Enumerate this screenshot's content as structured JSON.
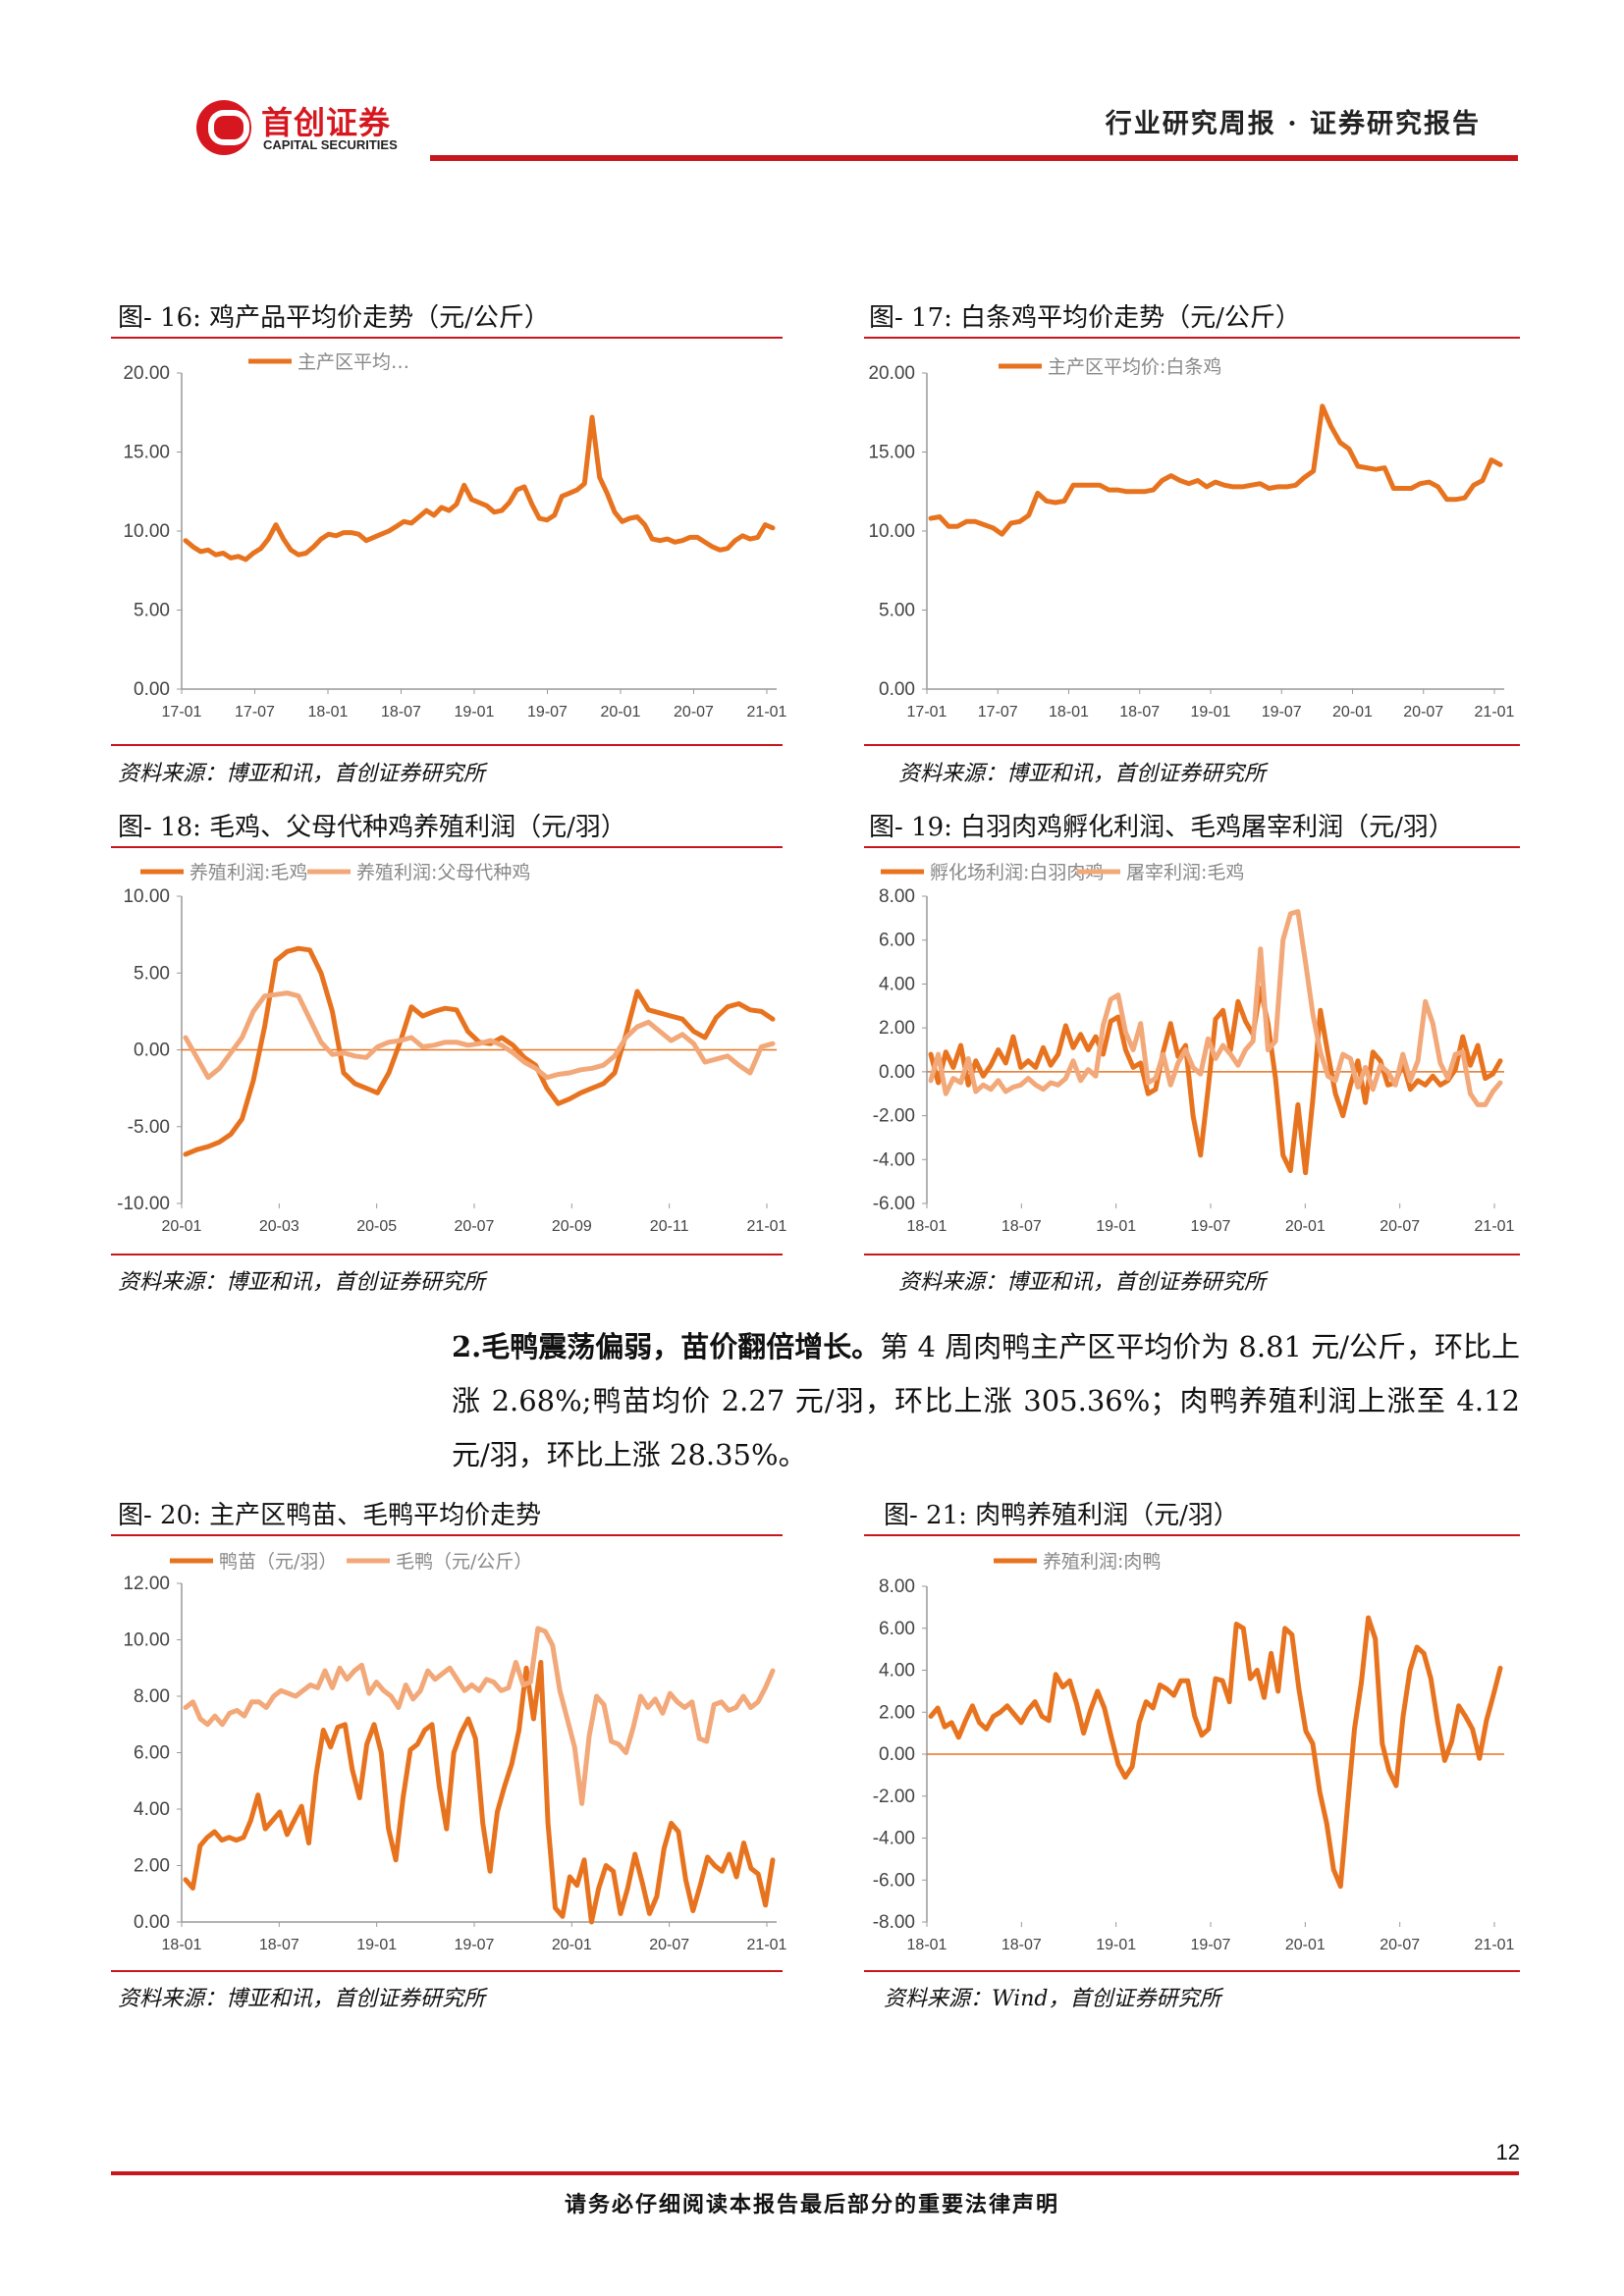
{
  "header": {
    "logo_cn": "首创证券",
    "logo_en": "CAPITAL SECURITIES",
    "report_type": "行业研究周报 · 证券研究报告"
  },
  "figures": [
    {
      "caption": "图- 16:  鸡产品平均价走势（元/公斤）",
      "source": "资料来源：博亚和讯，首创证券研究所"
    },
    {
      "caption": "图- 17:  白条鸡平均价走势（元/公斤）",
      "source": "资料来源：博亚和讯，首创证券研究所"
    },
    {
      "caption": "图- 18:  毛鸡、父母代种鸡养殖利润（元/羽）",
      "source": "资料来源：博亚和讯，首创证券研究所"
    },
    {
      "caption": "图- 19:  白羽肉鸡孵化利润、毛鸡屠宰利润（元/羽）",
      "source": "资料来源：博亚和讯，首创证券研究所"
    },
    {
      "caption": "图- 20:  主产区鸭苗、毛鸭平均价走势",
      "source": "资料来源：博亚和讯，首创证券研究所"
    },
    {
      "caption": "图- 21:  肉鸭养殖利润（元/羽）",
      "source": "资料来源：Wind，首创证券研究所"
    }
  ],
  "paragraph": {
    "bold": "2.毛鸭震荡偏弱，苗价翻倍增长。",
    "text": "第 4 周肉鸭主产区平均价为 8.81 元/公斤，环比上涨 2.68%;鸭苗均价 2.27 元/羽，环比上涨 305.36%；肉鸭养殖利润上涨至 4.12 元/羽，环比上涨 28.35%。"
  },
  "footer": {
    "page_number": "12",
    "disclaimer": "请务必仔细阅读本报告最后部分的重要法律声明"
  },
  "colors": {
    "accent": "#c8161d",
    "series_dark": "#e8731f",
    "series_light": "#f2a878"
  },
  "chart_data": [
    {
      "type": "line",
      "ylim": [
        0,
        20
      ],
      "yticks": [
        "20.00",
        "15.00",
        "10.00",
        "5.00",
        "0.00"
      ],
      "xticks": [
        "17-01",
        "17-07",
        "18-01",
        "18-07",
        "19-01",
        "19-07",
        "20-01",
        "20-07",
        "21-01"
      ],
      "series": [
        {
          "name": "主产区平均…",
          "values": [
            9.4,
            9.0,
            8.7,
            8.8,
            8.5,
            8.6,
            8.3,
            8.4,
            8.2,
            8.6,
            8.9,
            9.5,
            10.4,
            9.5,
            8.8,
            8.5,
            8.6,
            9.0,
            9.5,
            9.8,
            9.7,
            9.9,
            9.9,
            9.8,
            9.4,
            9.6,
            9.8,
            10.0,
            10.3,
            10.6,
            10.5,
            10.9,
            11.3,
            11.0,
            11.5,
            11.3,
            11.7,
            12.9,
            12.0,
            11.8,
            11.6,
            11.2,
            11.3,
            11.8,
            12.6,
            12.8,
            11.7,
            10.8,
            10.7,
            11.0,
            12.2,
            12.4,
            12.6,
            13.0,
            17.2,
            13.4,
            12.4,
            11.2,
            10.6,
            10.8,
            10.9,
            10.4,
            9.5,
            9.4,
            9.5,
            9.3,
            9.4,
            9.6,
            9.6,
            9.3,
            9.0,
            8.8,
            8.9,
            9.4,
            9.7,
            9.5,
            9.6,
            10.4,
            10.2
          ]
        }
      ]
    },
    {
      "type": "line",
      "ylim": [
        0,
        20
      ],
      "yticks": [
        "20.00",
        "15.00",
        "10.00",
        "5.00",
        "0.00"
      ],
      "xticks": [
        "17-01",
        "17-07",
        "18-01",
        "18-07",
        "19-01",
        "19-07",
        "20-01",
        "20-07",
        "21-01"
      ],
      "series": [
        {
          "name": "主产区平均价:白条鸡",
          "values": [
            10.8,
            10.9,
            10.3,
            10.3,
            10.6,
            10.6,
            10.4,
            10.2,
            9.8,
            10.5,
            10.6,
            11.0,
            12.4,
            11.9,
            11.8,
            11.9,
            12.9,
            12.9,
            12.9,
            12.9,
            12.6,
            12.6,
            12.5,
            12.5,
            12.5,
            12.6,
            13.2,
            13.5,
            13.2,
            13.0,
            13.2,
            12.8,
            13.1,
            12.9,
            12.8,
            12.8,
            12.9,
            13.0,
            12.7,
            12.8,
            12.8,
            12.9,
            13.4,
            13.8,
            17.9,
            16.6,
            15.6,
            15.2,
            14.1,
            14.0,
            13.9,
            14.0,
            12.7,
            12.7,
            12.7,
            13.0,
            13.1,
            12.8,
            12.0,
            12.0,
            12.1,
            12.9,
            13.2,
            14.5,
            14.2
          ]
        }
      ]
    },
    {
      "type": "line",
      "ylim": [
        -10,
        10
      ],
      "yticks": [
        "10.00",
        "5.00",
        "0.00",
        "-5.00",
        "-10.00"
      ],
      "xticks": [
        "20-01",
        "20-03",
        "20-05",
        "20-07",
        "20-09",
        "20-11",
        "21-01"
      ],
      "series": [
        {
          "name": "养殖利润:毛鸡",
          "values": [
            -6.8,
            -6.5,
            -6.3,
            -6.0,
            -5.5,
            -4.5,
            -2.0,
            1.5,
            5.8,
            6.4,
            6.6,
            6.5,
            5.0,
            2.5,
            -1.5,
            -2.2,
            -2.5,
            -2.8,
            -1.5,
            0.5,
            2.8,
            2.2,
            2.5,
            2.7,
            2.6,
            1.2,
            0.5,
            0.4,
            0.8,
            0.3,
            -0.5,
            -1.0,
            -2.5,
            -3.5,
            -3.2,
            -2.8,
            -2.5,
            -2.2,
            -1.5,
            1.0,
            3.8,
            2.6,
            2.4,
            2.2,
            2.0,
            1.2,
            0.8,
            2.1,
            2.8,
            3.0,
            2.6,
            2.5,
            2.0
          ],
          "color": "#e8731f"
        },
        {
          "name": "养殖利润:父母代种鸡",
          "values": [
            0.8,
            -0.5,
            -1.8,
            -1.2,
            -0.2,
            0.8,
            2.5,
            3.5,
            3.6,
            3.7,
            3.5,
            2.0,
            0.5,
            -0.3,
            -0.2,
            -0.4,
            -0.5,
            0.2,
            0.5,
            0.6,
            0.8,
            0.2,
            0.3,
            0.5,
            0.5,
            0.3,
            0.4,
            0.6,
            0.3,
            -0.2,
            -0.8,
            -1.2,
            -1.8,
            -1.6,
            -1.5,
            -1.3,
            -1.2,
            -1.0,
            -0.4,
            0.8,
            1.5,
            1.8,
            1.2,
            0.6,
            1.0,
            0.4,
            -0.8,
            -0.6,
            -0.4,
            -1.0,
            -1.5,
            0.2,
            0.4
          ],
          "color": "#f2a878"
        }
      ]
    },
    {
      "type": "line",
      "ylim": [
        -6,
        8
      ],
      "yticks": [
        "8.00",
        "6.00",
        "4.00",
        "2.00",
        "0.00",
        "-2.00",
        "-4.00",
        "-6.00"
      ],
      "xticks": [
        "18-01",
        "18-07",
        "19-01",
        "19-07",
        "20-01",
        "20-07",
        "21-01"
      ],
      "series": [
        {
          "name": "孵化场利润:白羽肉鸡",
          "values": [
            0.8,
            -0.5,
            0.9,
            0.2,
            1.2,
            -0.6,
            0.5,
            -0.2,
            0.3,
            1.0,
            0.4,
            1.6,
            0.2,
            0.5,
            0.2,
            1.1,
            0.3,
            0.8,
            2.1,
            1.1,
            1.7,
            1.0,
            1.6,
            0.8,
            2.3,
            2.5,
            1.0,
            0.2,
            0.4,
            -1.0,
            -0.8,
            0.9,
            2.2,
            0.7,
            1.2,
            -2.0,
            -3.8,
            -0.8,
            2.4,
            2.8,
            1.0,
            3.2,
            2.3,
            1.7,
            3.8,
            2.2,
            -0.3,
            -3.8,
            -4.5,
            -1.5,
            -4.6,
            -1.2,
            2.8,
            0.8,
            -1.0,
            -2.0,
            -0.6,
            0.5,
            -1.4,
            0.9,
            0.5,
            -0.6,
            -0.5,
            0.4,
            -0.8,
            -0.4,
            -0.6,
            -0.2,
            -0.6,
            -0.4,
            0.1,
            1.6,
            0.3,
            1.2,
            -0.3,
            -0.1,
            0.5
          ],
          "color": "#e8731f"
        },
        {
          "name": "屠宰利润:毛鸡",
          "values": [
            -0.4,
            0.8,
            -1.0,
            -0.3,
            -0.5,
            0.6,
            -0.9,
            -0.6,
            -0.8,
            -0.4,
            -0.9,
            -0.7,
            -0.6,
            -0.3,
            -0.6,
            -0.8,
            -0.5,
            -0.6,
            -0.3,
            0.5,
            -0.4,
            0.1,
            -0.2,
            2.1,
            3.3,
            3.5,
            1.8,
            1.0,
            2.2,
            -0.5,
            -0.3,
            0.8,
            -0.6,
            0.4,
            1.0,
            0.2,
            -0.1,
            1.5,
            0.6,
            1.2,
            0.8,
            0.3,
            1.0,
            1.4,
            5.6,
            1.0,
            1.4,
            6.0,
            7.2,
            7.3,
            5.0,
            2.6,
            0.9,
            -0.2,
            -0.4,
            0.8,
            0.6,
            -0.7,
            0.2,
            -0.8,
            0.3,
            0.0,
            -0.6,
            0.8,
            -0.4,
            0.5,
            3.2,
            2.2,
            0.4,
            -0.3,
            0.8,
            0.9,
            -1.0,
            -1.5,
            -1.5,
            -0.9,
            -0.5
          ],
          "color": "#f2a878"
        }
      ]
    },
    {
      "type": "line",
      "ylim": [
        0,
        12
      ],
      "yticks": [
        "12.00",
        "10.00",
        "8.00",
        "6.00",
        "4.00",
        "2.00",
        "0.00"
      ],
      "xticks": [
        "18-01",
        "18-07",
        "19-01",
        "19-07",
        "20-01",
        "20-07",
        "21-01"
      ],
      "series": [
        {
          "name": "鸭苗（元/羽）",
          "values": [
            1.5,
            1.2,
            2.7,
            3.0,
            3.2,
            2.9,
            3.0,
            2.9,
            3.0,
            3.6,
            4.5,
            3.3,
            3.6,
            3.9,
            3.1,
            3.6,
            4.1,
            2.8,
            5.2,
            6.8,
            6.2,
            6.9,
            7.0,
            5.4,
            4.4,
            6.3,
            7.0,
            6.0,
            3.3,
            2.2,
            4.4,
            6.1,
            6.3,
            6.8,
            7.0,
            4.8,
            3.3,
            6.0,
            6.7,
            7.2,
            6.5,
            3.5,
            1.8,
            3.9,
            4.8,
            5.6,
            6.8,
            9.0,
            7.2,
            9.2,
            3.5,
            0.5,
            0.2,
            1.6,
            1.3,
            2.2,
            0.0,
            1.2,
            2.0,
            1.8,
            0.3,
            1.2,
            2.4,
            1.4,
            0.3,
            0.9,
            2.6,
            3.5,
            3.2,
            1.5,
            0.4,
            1.3,
            2.3,
            2.0,
            1.8,
            2.4,
            1.6,
            2.8,
            1.9,
            1.7,
            0.6,
            2.2
          ]
        },
        {
          "name": "毛鸭（元/公斤）",
          "values": [
            7.6,
            7.8,
            7.2,
            7.0,
            7.3,
            7.0,
            7.4,
            7.5,
            7.3,
            7.8,
            7.8,
            7.6,
            8.0,
            8.2,
            8.1,
            8.0,
            8.2,
            8.4,
            8.3,
            8.9,
            8.3,
            9.0,
            8.6,
            8.9,
            9.1,
            8.1,
            8.5,
            8.2,
            8.0,
            7.6,
            8.4,
            7.9,
            8.2,
            8.9,
            8.6,
            8.8,
            9.0,
            8.6,
            8.2,
            8.4,
            8.2,
            8.6,
            8.5,
            8.2,
            8.3,
            9.2,
            8.4,
            8.5,
            10.4,
            10.3,
            9.8,
            8.2,
            7.2,
            6.2,
            4.2,
            6.6,
            8.0,
            7.7,
            6.4,
            6.3,
            6.0,
            6.9,
            8.0,
            7.6,
            7.9,
            7.4,
            8.1,
            7.8,
            7.6,
            7.8,
            6.5,
            6.4,
            7.7,
            7.8,
            7.5,
            7.6,
            8.0,
            7.6,
            7.8,
            8.3,
            8.9
          ]
        }
      ]
    },
    {
      "type": "line",
      "ylim": [
        -8,
        8
      ],
      "yticks": [
        "8.00",
        "6.00",
        "4.00",
        "2.00",
        "0.00",
        "-2.00",
        "-4.00",
        "-6.00",
        "-8.00"
      ],
      "xticks": [
        "18-01",
        "18-07",
        "19-01",
        "19-07",
        "20-01",
        "20-07",
        "21-01"
      ],
      "series": [
        {
          "name": "养殖利润:肉鸭",
          "values": [
            1.8,
            2.2,
            1.3,
            1.5,
            0.8,
            1.6,
            2.3,
            1.5,
            1.2,
            1.8,
            2.0,
            2.3,
            1.9,
            1.5,
            2.1,
            2.5,
            1.8,
            1.6,
            3.8,
            3.2,
            3.5,
            2.4,
            1.0,
            2.1,
            3.0,
            2.2,
            0.8,
            -0.5,
            -1.1,
            -0.6,
            1.5,
            2.5,
            2.2,
            3.3,
            3.1,
            2.8,
            3.5,
            3.5,
            1.8,
            0.9,
            1.2,
            3.6,
            3.5,
            2.5,
            6.2,
            6.0,
            3.6,
            4.0,
            2.7,
            4.8,
            3.0,
            6.0,
            5.7,
            3.1,
            1.1,
            0.5,
            -1.8,
            -3.3,
            -5.5,
            -6.3,
            -2.5,
            1.2,
            3.4,
            6.5,
            5.5,
            0.5,
            -0.8,
            -1.5,
            1.8,
            4.0,
            5.1,
            4.8,
            3.6,
            1.5,
            -0.3,
            0.6,
            2.3,
            1.8,
            1.2,
            -0.2,
            1.6,
            2.8,
            4.1
          ]
        }
      ]
    }
  ]
}
